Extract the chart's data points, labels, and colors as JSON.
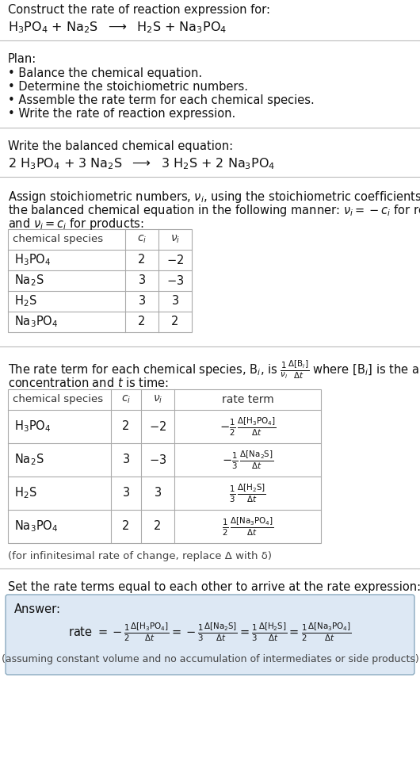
{
  "bg_color": "#ffffff",
  "text_color": "#111111",
  "gray_text": "#444444",
  "table_border": "#aaaaaa",
  "answer_box_fill": "#dde8f4",
  "answer_box_border": "#8aaabf",
  "section_line_color": "#bbbbbb",
  "title_line1": "Construct the rate of reaction expression for:",
  "plan_header": "Plan:",
  "plan_items": [
    "• Balance the chemical equation.",
    "• Determine the stoichiometric numbers.",
    "• Assemble the rate term for each chemical species.",
    "• Write the rate of reaction expression."
  ],
  "balanced_header": "Write the balanced chemical equation:",
  "assign_header": "Assign stoichiometric numbers, $\\nu_i$, using the stoichiometric coefficients, $c_i$, from",
  "assign_line2": "the balanced chemical equation in the following manner: $\\nu_i = -c_i$ for reactants",
  "assign_line3": "and $\\nu_i = c_i$ for products:",
  "rate_line1": "The rate term for each chemical species, B$_i$, is $\\frac{1}{\\nu_i}\\frac{\\Delta[\\mathrm{B}_i]}{\\Delta t}$ where [B$_i$] is the amount",
  "rate_line2": "concentration and $t$ is time:",
  "infinitesimal_note": "(for infinitesimal rate of change, replace Δ with δ)",
  "set_equal_text": "Set the rate terms equal to each other to arrive at the rate expression:",
  "answer_label": "Answer:",
  "disclaimer": "(assuming constant volume and no accumulation of intermediates or side products)"
}
